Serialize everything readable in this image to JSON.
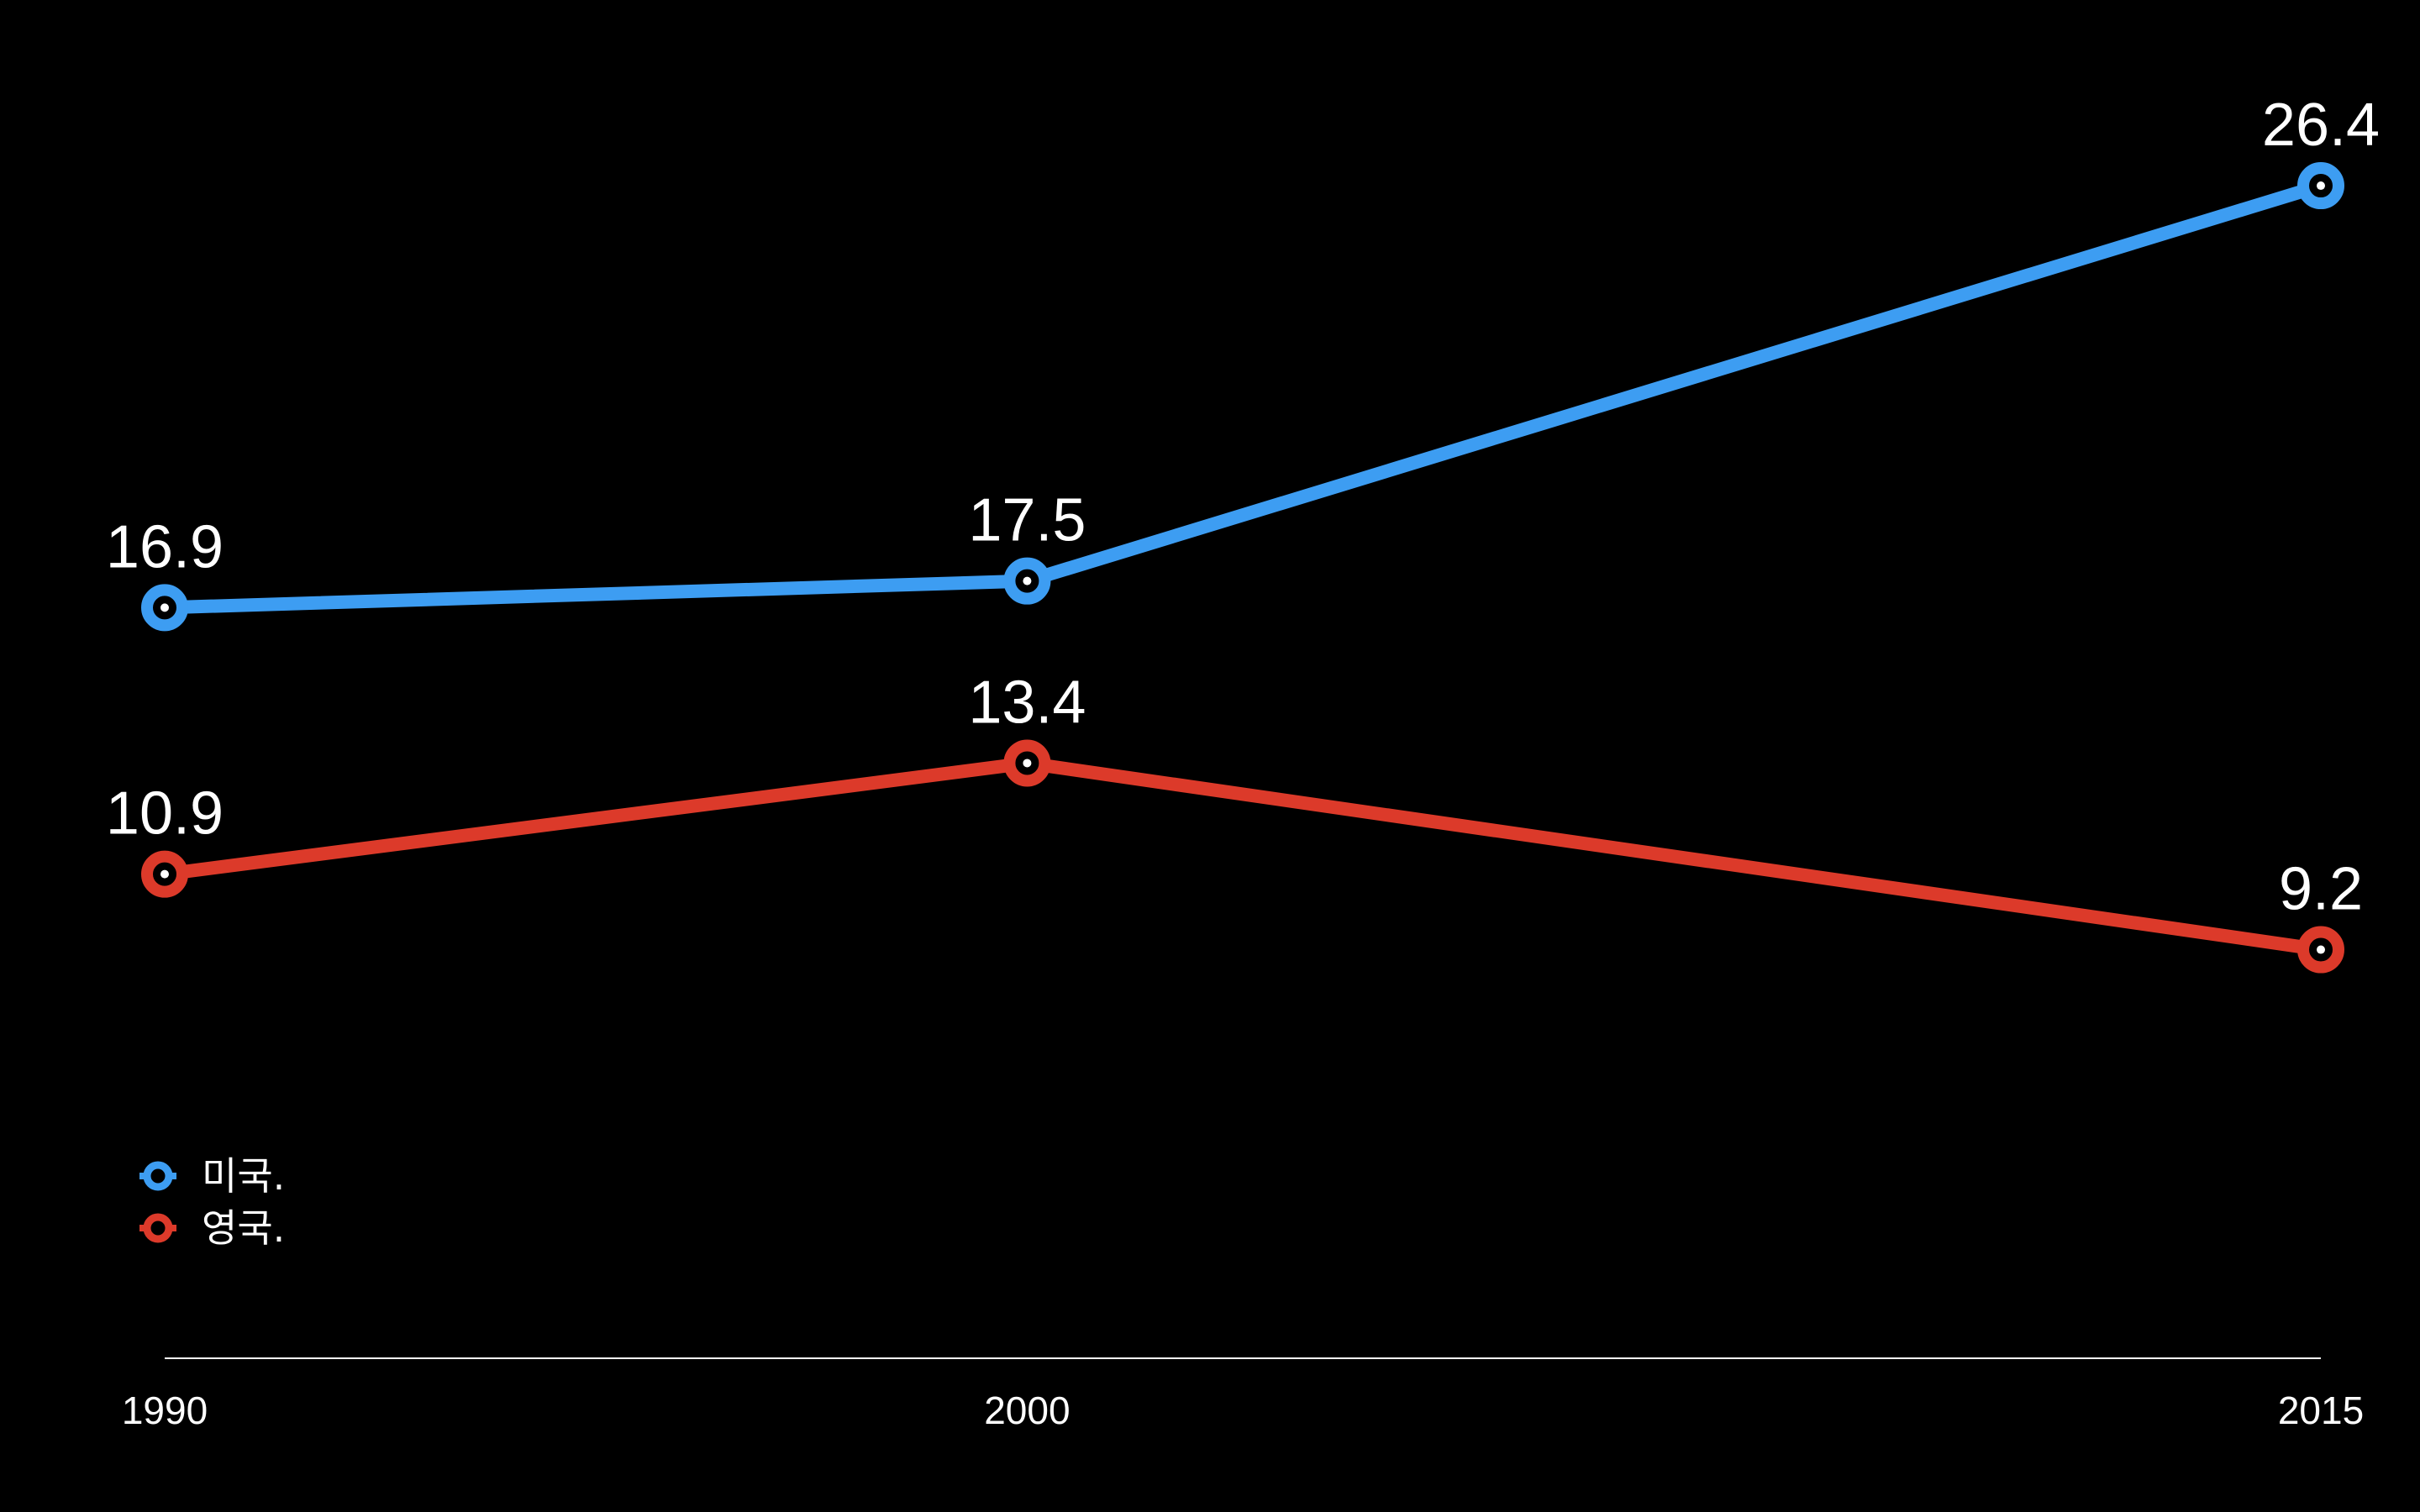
{
  "chart_data": {
    "type": "line",
    "x": [
      1990,
      2000,
      2015
    ],
    "x_tick_labels": [
      "1990",
      "2000",
      "2015"
    ],
    "series": [
      {
        "name": "미국.",
        "color": "#3d9df2",
        "values": [
          16.9,
          17.5,
          26.4
        ],
        "value_labels": [
          "16.9",
          "17.5",
          "26.4"
        ]
      },
      {
        "name": "영국.",
        "color": "#dc3a2a",
        "values": [
          10.9,
          13.4,
          9.2
        ],
        "value_labels": [
          "10.9",
          "13.4",
          "9.2"
        ]
      }
    ],
    "title": "",
    "xlabel": "",
    "ylabel": "",
    "xlim": [
      1990,
      2015
    ],
    "ylim": [
      0,
      28.5
    ],
    "grid": false,
    "y_axis_visible": false,
    "legend": "bottom-left",
    "colors": {
      "background": "#000000",
      "axis": "#ffffff",
      "text": "#ffffff"
    }
  }
}
